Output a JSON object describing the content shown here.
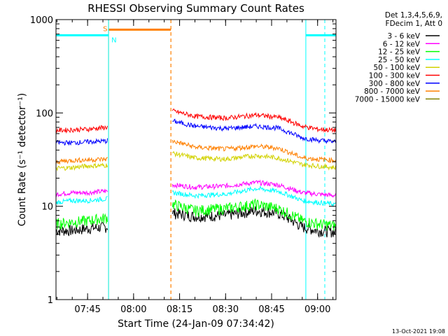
{
  "chart_data": {
    "type": "line",
    "title": "RHESSI Observing Summary Count Rates",
    "xlabel": "Start Time (24-Jan-09 07:34:42)",
    "ylabel": "Count Rate (s⁻¹ detector⁻¹)",
    "yscale": "log",
    "xlim": [
      "07:34:42",
      "09:06:00"
    ],
    "ylim": [
      1,
      1000
    ],
    "x_ticks": [
      "07:45",
      "08:00",
      "08:15",
      "08:30",
      "08:45",
      "09:00"
    ],
    "y_ticks": [
      "1",
      "10",
      "100",
      "1000"
    ],
    "legend_header": [
      "Det 1,3,4,5,6,9,",
      "FDecim 1, Att 0"
    ],
    "legend_position": "top-right",
    "footer": "13-Oct-2021 19:08",
    "gaps": [
      {
        "start": "07:51:50",
        "end": "08:12:10"
      }
    ],
    "markers": [
      {
        "label": "S",
        "start": "07:51:50",
        "end": "08:12:10",
        "color": "#ff8000",
        "level": 780
      },
      {
        "label": "N",
        "start": "07:34:42",
        "end": "07:51:50",
        "color": "#00ffff",
        "level": 680
      },
      {
        "label": "",
        "start": "08:56:10",
        "end": "09:06:00",
        "color": "#00ffff",
        "level": 680
      }
    ],
    "series": [
      {
        "name": "3 - 6 keV",
        "color": "#000000",
        "points": [
          [
            "07:34:42",
            5.5
          ],
          [
            "07:40",
            5.5
          ],
          [
            "07:45",
            5.8
          ],
          [
            "07:51",
            6.0
          ],
          [
            "08:12:40",
            8.5
          ],
          [
            "08:20",
            7.8
          ],
          [
            "08:30",
            8.0
          ],
          [
            "08:40",
            9.0
          ],
          [
            "08:47",
            8.5
          ],
          [
            "08:55",
            6.0
          ],
          [
            "09:00",
            5.5
          ],
          [
            "09:06",
            5.3
          ]
        ]
      },
      {
        "name": "6 - 12 keV",
        "color": "#ff00ff",
        "points": [
          [
            "07:34:42",
            13.5
          ],
          [
            "07:40",
            14
          ],
          [
            "07:45",
            14
          ],
          [
            "07:51",
            14.5
          ],
          [
            "08:12:40",
            17
          ],
          [
            "08:20",
            16
          ],
          [
            "08:30",
            16.5
          ],
          [
            "08:40",
            18
          ],
          [
            "08:47",
            17
          ],
          [
            "08:55",
            14
          ],
          [
            "09:00",
            13.5
          ],
          [
            "09:06",
            13
          ]
        ]
      },
      {
        "name": "12 - 25 keV",
        "color": "#00ff00",
        "points": [
          [
            "07:34:42",
            6.5
          ],
          [
            "07:40",
            6.8
          ],
          [
            "07:45",
            7.0
          ],
          [
            "07:51",
            7.5
          ],
          [
            "08:12:40",
            10.5
          ],
          [
            "08:20",
            9.0
          ],
          [
            "08:30",
            9.5
          ],
          [
            "08:40",
            10.5
          ],
          [
            "08:47",
            9.5
          ],
          [
            "08:55",
            7.0
          ],
          [
            "09:00",
            6.5
          ],
          [
            "09:06",
            6.2
          ]
        ]
      },
      {
        "name": "25 - 50 keV",
        "color": "#00ffff",
        "points": [
          [
            "07:34:42",
            11
          ],
          [
            "07:40",
            11.5
          ],
          [
            "07:45",
            11.5
          ],
          [
            "07:51",
            12
          ],
          [
            "08:12:40",
            14
          ],
          [
            "08:20",
            13
          ],
          [
            "08:30",
            13.5
          ],
          [
            "08:40",
            15.5
          ],
          [
            "08:47",
            14.5
          ],
          [
            "08:55",
            11.5
          ],
          [
            "09:00",
            11
          ],
          [
            "09:06",
            10.5
          ]
        ]
      },
      {
        "name": "50 - 100 keV",
        "color": "#d2d200",
        "points": [
          [
            "07:34:42",
            25.5
          ],
          [
            "07:40",
            26
          ],
          [
            "07:45",
            27
          ],
          [
            "07:51",
            27.5
          ],
          [
            "08:12:40",
            37
          ],
          [
            "08:20",
            33
          ],
          [
            "08:30",
            32
          ],
          [
            "08:40",
            35
          ],
          [
            "08:47",
            33
          ],
          [
            "08:55",
            28
          ],
          [
            "09:00",
            27
          ],
          [
            "09:06",
            26
          ]
        ]
      },
      {
        "name": "100 - 300 keV",
        "color": "#ff0000",
        "points": [
          [
            "07:34:42",
            65
          ],
          [
            "07:40",
            66
          ],
          [
            "07:45",
            67
          ],
          [
            "07:51",
            70
          ],
          [
            "08:12:40",
            105
          ],
          [
            "08:20",
            92
          ],
          [
            "08:30",
            88
          ],
          [
            "08:40",
            95
          ],
          [
            "08:47",
            90
          ],
          [
            "08:55",
            72
          ],
          [
            "09:00",
            67
          ],
          [
            "09:06",
            65
          ]
        ]
      },
      {
        "name": "300 - 800 keV",
        "color": "#0000ff",
        "points": [
          [
            "07:34:42",
            48
          ],
          [
            "07:40",
            48
          ],
          [
            "07:45",
            49
          ],
          [
            "07:51",
            50
          ],
          [
            "08:12:40",
            82
          ],
          [
            "08:20",
            72
          ],
          [
            "08:30",
            68
          ],
          [
            "08:40",
            72
          ],
          [
            "08:47",
            69
          ],
          [
            "08:55",
            54
          ],
          [
            "09:00",
            51
          ],
          [
            "09:06",
            49
          ]
        ]
      },
      {
        "name": "800 - 7000 keV",
        "color": "#ff8000",
        "points": [
          [
            "07:34:42",
            30
          ],
          [
            "07:40",
            31
          ],
          [
            "07:45",
            31.5
          ],
          [
            "07:51",
            32
          ],
          [
            "08:12:40",
            50
          ],
          [
            "08:20",
            43
          ],
          [
            "08:30",
            41
          ],
          [
            "08:40",
            44
          ],
          [
            "08:47",
            42
          ],
          [
            "08:55",
            33
          ],
          [
            "09:00",
            32
          ],
          [
            "09:06",
            31
          ]
        ]
      },
      {
        "name": "7000 - 15000 keV",
        "color": "#808000",
        "points": []
      }
    ]
  }
}
